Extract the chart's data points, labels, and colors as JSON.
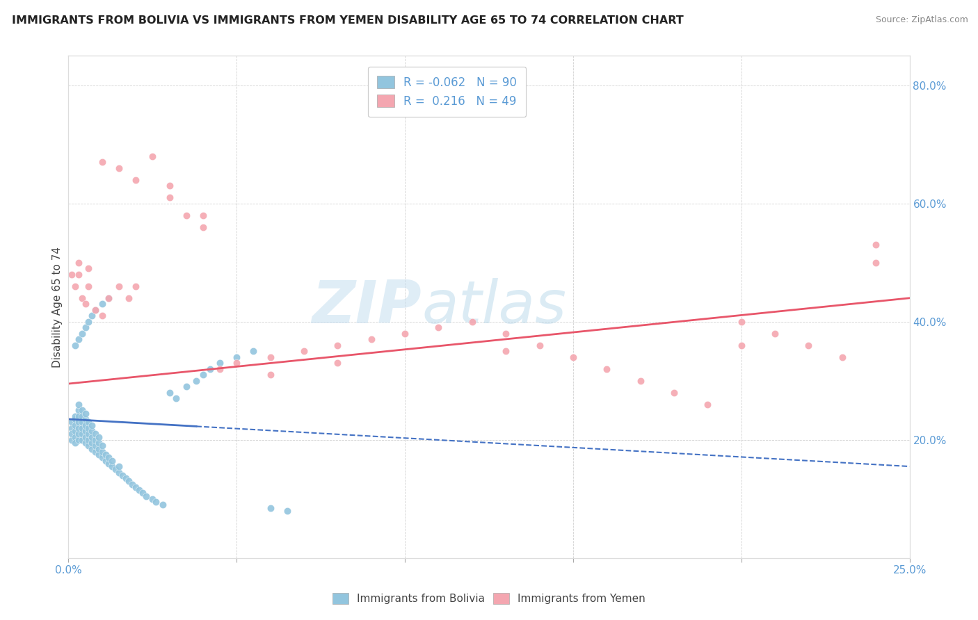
{
  "title": "IMMIGRANTS FROM BOLIVIA VS IMMIGRANTS FROM YEMEN DISABILITY AGE 65 TO 74 CORRELATION CHART",
  "source": "Source: ZipAtlas.com",
  "ylabel": "Disability Age 65 to 74",
  "xlim": [
    0.0,
    0.25
  ],
  "ylim": [
    0.0,
    0.85
  ],
  "bolivia_color": "#92C5DE",
  "yemen_color": "#F4A6B0",
  "bolivia_line_color": "#4472C4",
  "yemen_line_color": "#E8566A",
  "R_bolivia": -0.062,
  "N_bolivia": 90,
  "R_yemen": 0.216,
  "N_yemen": 49,
  "watermark": "ZIPatlas",
  "bolivia_x": [
    0.001,
    0.001,
    0.001,
    0.001,
    0.002,
    0.002,
    0.002,
    0.002,
    0.002,
    0.002,
    0.003,
    0.003,
    0.003,
    0.003,
    0.003,
    0.003,
    0.003,
    0.004,
    0.004,
    0.004,
    0.004,
    0.004,
    0.004,
    0.005,
    0.005,
    0.005,
    0.005,
    0.005,
    0.005,
    0.006,
    0.006,
    0.006,
    0.006,
    0.006,
    0.007,
    0.007,
    0.007,
    0.007,
    0.007,
    0.008,
    0.008,
    0.008,
    0.008,
    0.009,
    0.009,
    0.009,
    0.009,
    0.01,
    0.01,
    0.01,
    0.011,
    0.011,
    0.012,
    0.012,
    0.013,
    0.013,
    0.014,
    0.015,
    0.015,
    0.016,
    0.017,
    0.018,
    0.019,
    0.02,
    0.021,
    0.022,
    0.023,
    0.025,
    0.026,
    0.028,
    0.03,
    0.032,
    0.035,
    0.038,
    0.04,
    0.042,
    0.045,
    0.05,
    0.055,
    0.06,
    0.002,
    0.003,
    0.004,
    0.005,
    0.006,
    0.007,
    0.008,
    0.01,
    0.012,
    0.065
  ],
  "bolivia_y": [
    0.2,
    0.22,
    0.21,
    0.23,
    0.215,
    0.225,
    0.235,
    0.205,
    0.24,
    0.195,
    0.2,
    0.21,
    0.22,
    0.23,
    0.25,
    0.24,
    0.26,
    0.2,
    0.21,
    0.22,
    0.23,
    0.24,
    0.25,
    0.195,
    0.205,
    0.215,
    0.225,
    0.235,
    0.245,
    0.19,
    0.2,
    0.21,
    0.22,
    0.23,
    0.185,
    0.195,
    0.205,
    0.215,
    0.225,
    0.18,
    0.19,
    0.2,
    0.21,
    0.175,
    0.185,
    0.195,
    0.205,
    0.17,
    0.18,
    0.19,
    0.165,
    0.175,
    0.16,
    0.17,
    0.155,
    0.165,
    0.15,
    0.145,
    0.155,
    0.14,
    0.135,
    0.13,
    0.125,
    0.12,
    0.115,
    0.11,
    0.105,
    0.1,
    0.095,
    0.09,
    0.28,
    0.27,
    0.29,
    0.3,
    0.31,
    0.32,
    0.33,
    0.34,
    0.35,
    0.085,
    0.36,
    0.37,
    0.38,
    0.39,
    0.4,
    0.41,
    0.42,
    0.43,
    0.44,
    0.08
  ],
  "yemen_x": [
    0.001,
    0.002,
    0.003,
    0.004,
    0.005,
    0.006,
    0.008,
    0.01,
    0.012,
    0.015,
    0.018,
    0.02,
    0.025,
    0.03,
    0.035,
    0.04,
    0.045,
    0.05,
    0.06,
    0.07,
    0.08,
    0.09,
    0.1,
    0.11,
    0.12,
    0.13,
    0.14,
    0.15,
    0.16,
    0.17,
    0.18,
    0.19,
    0.2,
    0.21,
    0.22,
    0.23,
    0.24,
    0.003,
    0.006,
    0.01,
    0.015,
    0.02,
    0.03,
    0.04,
    0.06,
    0.08,
    0.13,
    0.2,
    0.24
  ],
  "yemen_y": [
    0.48,
    0.46,
    0.5,
    0.44,
    0.43,
    0.49,
    0.42,
    0.41,
    0.44,
    0.46,
    0.44,
    0.46,
    0.68,
    0.63,
    0.58,
    0.56,
    0.32,
    0.33,
    0.34,
    0.35,
    0.36,
    0.37,
    0.38,
    0.39,
    0.4,
    0.38,
    0.36,
    0.34,
    0.32,
    0.3,
    0.28,
    0.26,
    0.36,
    0.38,
    0.36,
    0.34,
    0.53,
    0.48,
    0.46,
    0.67,
    0.66,
    0.64,
    0.61,
    0.58,
    0.31,
    0.33,
    0.35,
    0.4,
    0.5
  ]
}
